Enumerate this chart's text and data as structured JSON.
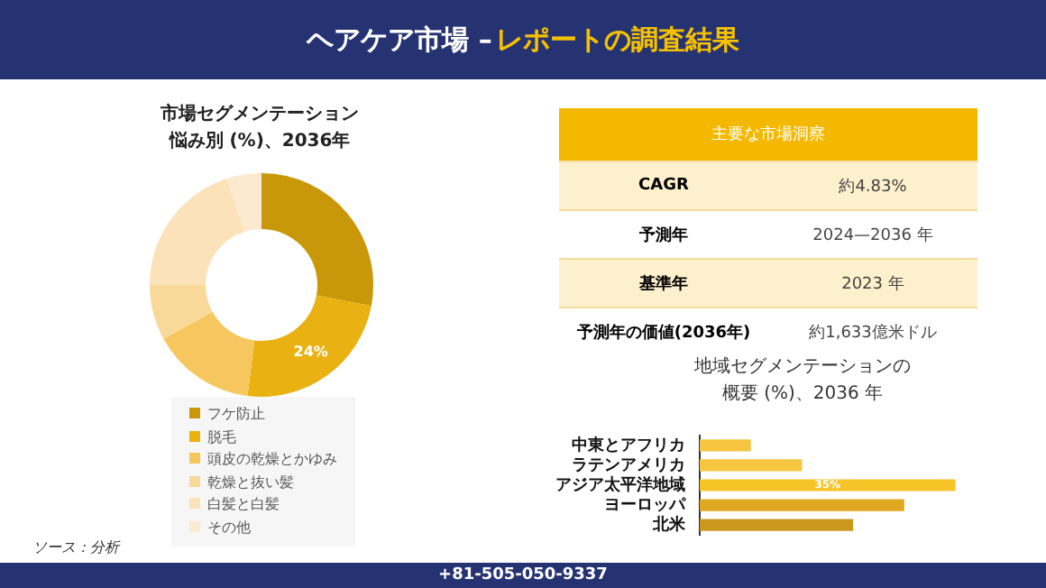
{
  "chart_data": [
    {
      "type": "other",
      "title": "ヘアケア市場 –レポートの調査結果",
      "annotations": [
        "主要な市場洞察",
        "CAGR",
        "約4.83%",
        "予測年",
        "2024—2036 年",
        "基準年",
        "2023 年",
        "予測年の価値(2036年)",
        "約1,633億米ドル",
        "+81-505-050-9337"
      ]
    },
    {
      "type": "donut",
      "title": "市場セグメンテーション悩み別 (%)、2036年",
      "categories": [
        "フケ防止",
        "脱毛",
        "頭皮の乾燥とかゆみ",
        "乾燥と抜い髪",
        "白髪と白髪",
        "その他"
      ],
      "values": [
        28,
        24,
        15,
        8,
        20,
        5
      ],
      "colors": [
        "#c9980a",
        "#e9b111",
        "#f6c75e",
        "#f9d99a",
        "#fbe2b8",
        "#fde9cf"
      ],
      "value_labels": [
        null,
        "24%",
        null,
        null,
        null,
        null
      ],
      "legend": "bottom",
      "annotations": [
        "ソース：分析"
      ]
    },
    {
      "type": "bar",
      "orientation": "horizontal",
      "title": "地域セグメンテーションの概要 (%)、2036 年",
      "categories": [
        "中東とアフリカ",
        "ラテンアメリカ",
        "アジア太平洋地域",
        "ヨーロッパ",
        "北米"
      ],
      "values": [
        7,
        14,
        35,
        28,
        21
      ],
      "colors": [
        "#f5c540",
        "#f5c540",
        "#f7c428",
        "#e0a820",
        "#c9981c"
      ],
      "value_labels": [
        null,
        null,
        "35%",
        null,
        null
      ]
    }
  ]
}
